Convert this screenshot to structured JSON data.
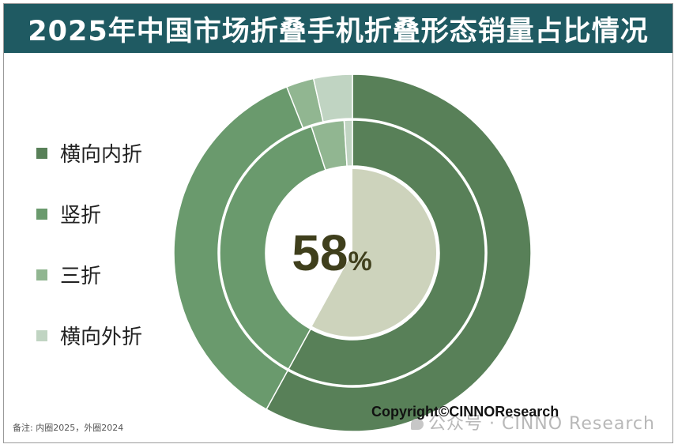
{
  "title": "2025年中国市场折叠手机折叠形态销量占比情况",
  "note": "备注: 内圈2025，外圈2024",
  "copyright": "Copyright©CINNOResearch",
  "watermark": "公众号 · CINNO Research",
  "center_value": "58",
  "center_unit": "%",
  "legend": [
    {
      "label": "横向内折",
      "color": "#588058"
    },
    {
      "label": "竖折",
      "color": "#6a9a6d"
    },
    {
      "label": "三折",
      "color": "#91b691"
    },
    {
      "label": "横向外折",
      "color": "#c0d4c2"
    }
  ],
  "chart_data": {
    "type": "donut",
    "title": "2025年中国市场折叠手机折叠形态销量占比情况",
    "categories": [
      "横向内折",
      "竖折",
      "三折",
      "横向外折"
    ],
    "series": [
      {
        "name": "2025",
        "values": [
          58,
          37,
          4,
          1
        ]
      },
      {
        "name": "2024",
        "values": [
          58,
          36,
          2.5,
          3.5
        ]
      }
    ],
    "center_label": "58%",
    "center_label_category": "横向内折",
    "colors": [
      "#588058",
      "#6a9a6d",
      "#91b691",
      "#c0d4c2"
    ],
    "highlight_color": "#cdd3bc",
    "legend_position": "left",
    "start_angle": "top",
    "direction": "clockwise"
  }
}
